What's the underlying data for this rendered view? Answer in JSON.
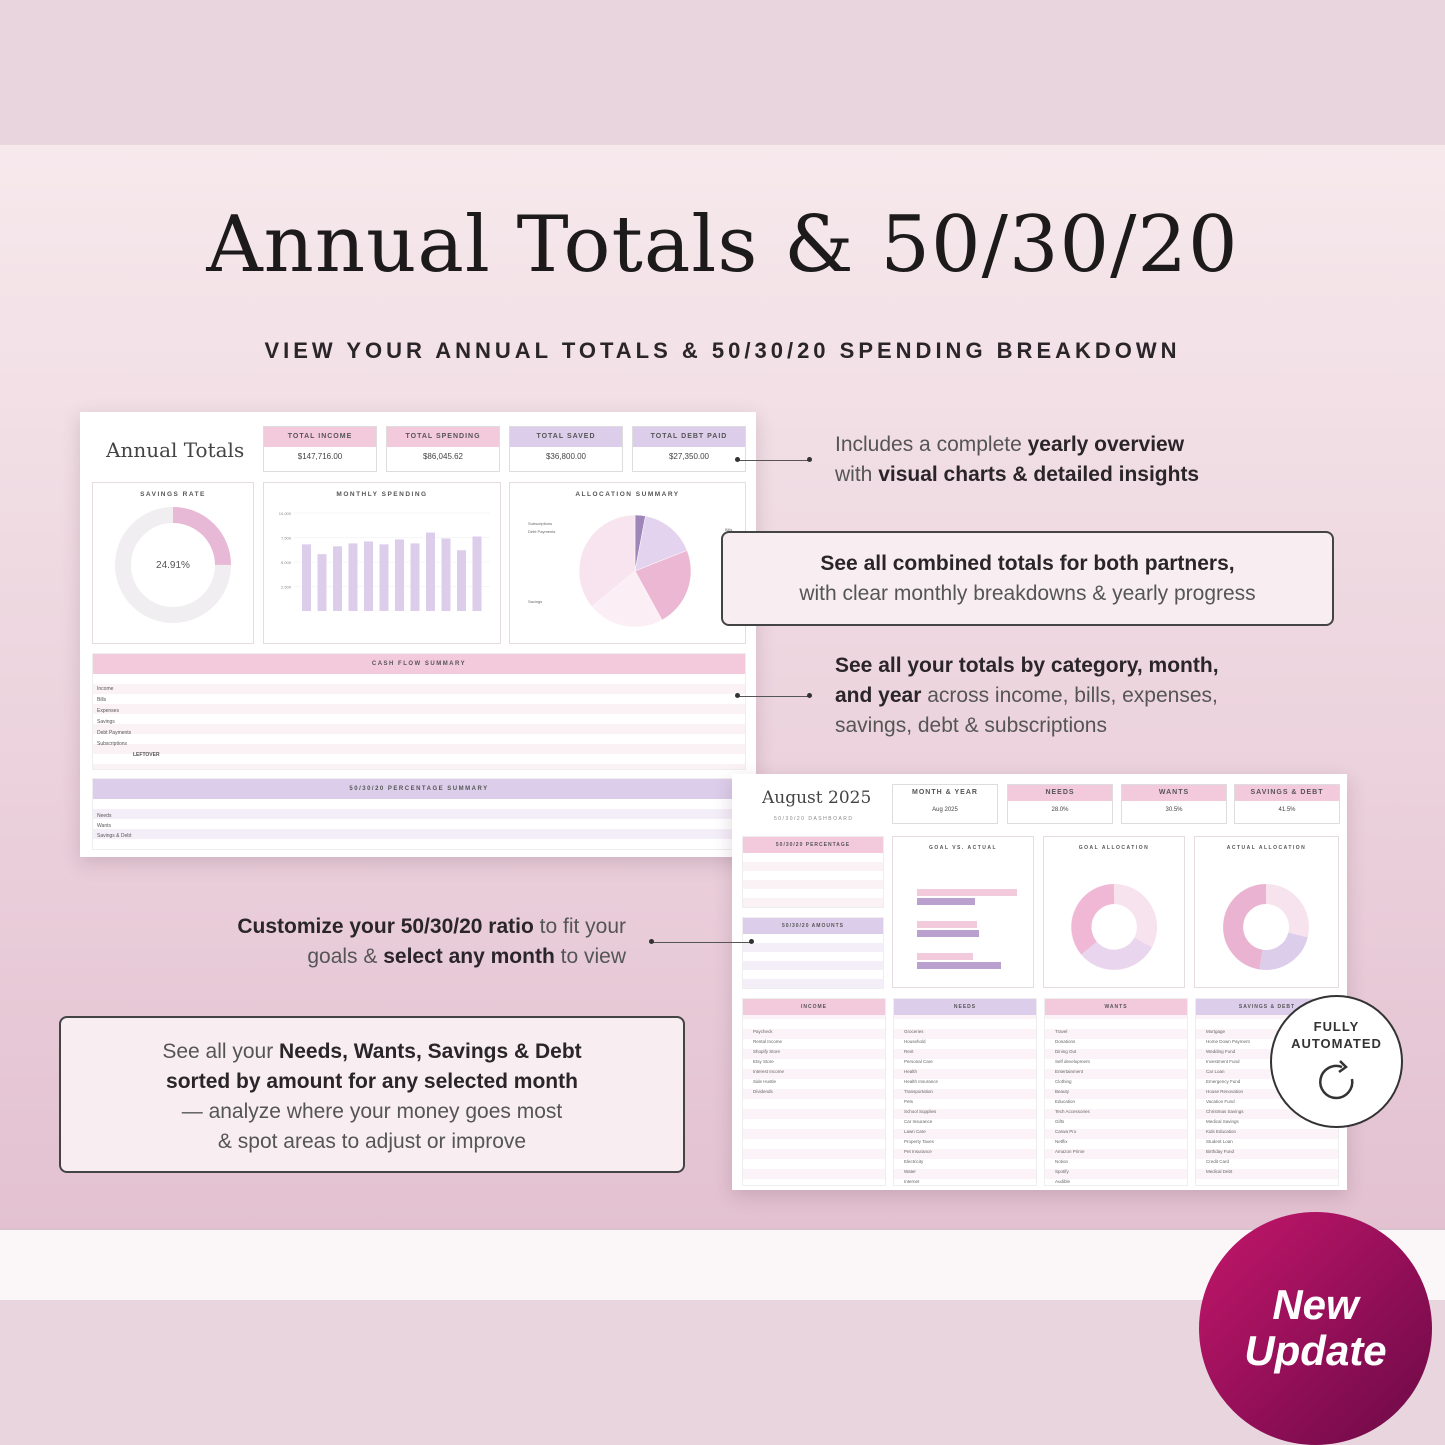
{
  "header": {
    "title": "Annual Totals & 50/30/20",
    "subtitle": "VIEW YOUR ANNUAL TOTALS & 50/30/20 SPENDING BREAKDOWN"
  },
  "annual_sheet": {
    "title": "Annual Totals",
    "kpis": [
      {
        "label": "TOTAL INCOME",
        "value": "$147,716.00",
        "color": "#f3c9dc"
      },
      {
        "label": "TOTAL SPENDING",
        "value": "$86,045.62",
        "color": "#f3c9dc"
      },
      {
        "label": "TOTAL SAVED",
        "value": "$36,800.00",
        "color": "#dccdea"
      },
      {
        "label": "TOTAL DEBT PAID",
        "value": "$27,350.00",
        "color": "#dccdea"
      }
    ],
    "savings_rate": {
      "title": "SAVINGS RATE",
      "value": "24.91%",
      "fraction": 0.2491
    },
    "monthly_spending": {
      "title": "MONTHLY SPENDING",
      "y_ticks": [
        "10,000",
        "7,500",
        "5,000",
        "2,500"
      ],
      "values": [
        6800,
        5800,
        6600,
        6900,
        7100,
        6800,
        7300,
        6900,
        8000,
        7400,
        6200,
        7600
      ]
    },
    "allocation_summary": {
      "title": "ALLOCATION SUMMARY",
      "labels": [
        "Subscriptions",
        "Debt Payments",
        "Savings",
        "Bills",
        "Expenses"
      ],
      "values": [
        3,
        16,
        23,
        22,
        36
      ]
    },
    "cash_flow": {
      "title": "CASH FLOW SUMMARY",
      "rows": [
        "Income",
        "Bills",
        "Expenses",
        "Savings",
        "Debt Payments",
        "Subscriptions",
        "LEFTOVER"
      ]
    },
    "percentage_summary": {
      "title": "50/30/20 PERCENTAGE SUMMARY",
      "rows": [
        "Needs",
        "Wants",
        "Savings & Debt"
      ]
    }
  },
  "monthly_sheet": {
    "title": "August 2025",
    "subtitle": "50/30/20 DASHBOARD",
    "kpis": [
      {
        "label": "MONTH & YEAR",
        "value": "Aug 2025"
      },
      {
        "label": "NEEDS",
        "value": "28.0%"
      },
      {
        "label": "WANTS",
        "value": "30.5%"
      },
      {
        "label": "SAVINGS & DEBT",
        "value": "41.5%"
      }
    ],
    "percentage_box": "50/30/20 PERCENTAGE",
    "amounts_box": "50/30/20 AMOUNTS",
    "charts": [
      "GOAL VS. ACTUAL",
      "GOAL ALLOCATION",
      "ACTUAL ALLOCATION"
    ],
    "lists": [
      {
        "title": "INCOME",
        "items": [
          "Paycheck",
          "Rental Income",
          "Shopify Store",
          "Etsy Store",
          "Interest Income",
          "Side Hustle",
          "Dividends"
        ]
      },
      {
        "title": "NEEDS",
        "items": [
          "Groceries",
          "Household",
          "Rent",
          "Personal Care",
          "Health",
          "Health Insurance",
          "Transportation",
          "Pets",
          "School Supplies",
          "Car Insurance",
          "Lawn Care",
          "Property Taxes",
          "Pet Insurance",
          "Electricity",
          "Water",
          "Internet"
        ]
      },
      {
        "title": "WANTS",
        "items": [
          "Travel",
          "Donations",
          "Dining Out",
          "Self development",
          "Entertainment",
          "Clothing",
          "Beauty",
          "Education",
          "Tech Accessories",
          "Gifts",
          "Carwa Pro",
          "Netflix",
          "Amazon Prime",
          "Notion",
          "Spotify",
          "Audible"
        ]
      },
      {
        "title": "SAVINGS & DEBT",
        "items": [
          "Mortgage",
          "Home Down Payment",
          "Wedding Fund",
          "Investment Fund",
          "Car Loan",
          "Emergency Fund",
          "House Renovation",
          "Vacation Fund",
          "Christmas Savings",
          "Medical Savings",
          "Kids Education",
          "Student Loan",
          "Birthday Fund",
          "Credit Card",
          "Medical Debt"
        ]
      }
    ]
  },
  "callouts": {
    "c1_line1_pre": "Includes a complete ",
    "c1_line1_bold": "yearly overview",
    "c1_line2_pre": "with ",
    "c1_line2_bold": "visual charts & detailed insights",
    "c2_line1": "See all combined totals for both partners,",
    "c2_line2": "with clear monthly breakdowns & yearly progress",
    "c3_line1": "See all your totals by category, month,",
    "c3_line2_bold": "and year",
    "c3_line2_rest": " across income, bills, expenses,",
    "c3_line3": "savings, debt & subscriptions",
    "c4_line1_bold": "Customize your 50/30/20 ratio",
    "c4_line1_rest": " to fit your",
    "c4_line2_pre": "goals & ",
    "c4_line2_bold": "select any month",
    "c4_line2_rest": " to view",
    "c5_line1_pre": "See all your ",
    "c5_line1_bold": "Needs, Wants, Savings & Debt",
    "c5_line2_bold": "sorted by amount for any selected month",
    "c5_line3": "— analyze where your money goes most",
    "c5_line4": "& spot areas to adjust or improve"
  },
  "badges": {
    "auto_line1": "FULLY",
    "auto_line2": "AUTOMATED",
    "new_line1": "New",
    "new_line2": "Update"
  },
  "colors": {
    "pink": "#f3c9dc",
    "lavender": "#dccdea",
    "accent": "#a8137a"
  }
}
